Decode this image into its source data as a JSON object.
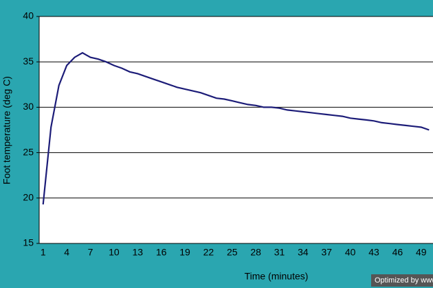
{
  "chart_data": {
    "type": "line",
    "x_label": "Time (minutes)",
    "y_label": "Foot temperature (deg C)",
    "categories": [
      1,
      null,
      null,
      4,
      null,
      null,
      7,
      null,
      null,
      10,
      null,
      null,
      13,
      null,
      null,
      16,
      null,
      null,
      19,
      null,
      null,
      22,
      null,
      null,
      25,
      null,
      null,
      28,
      null,
      null,
      31,
      null,
      null,
      34,
      null,
      null,
      37,
      null,
      null,
      40,
      null,
      null,
      43,
      null,
      null,
      46,
      null,
      null,
      49,
      null
    ],
    "series": [
      {
        "color": "#1c1c78",
        "values": [
          19.3,
          27.8,
          32.4,
          34.6,
          35.5,
          36.0,
          35.5,
          35.3,
          35.0,
          34.6,
          34.3,
          33.9,
          33.7,
          33.4,
          33.1,
          32.8,
          32.5,
          32.2,
          32.0,
          31.8,
          31.6,
          31.3,
          31.0,
          30.9,
          30.7,
          30.5,
          30.3,
          30.2,
          30.0,
          30.0,
          29.9,
          29.7,
          29.6,
          29.5,
          29.4,
          29.3,
          29.2,
          29.1,
          29.0,
          28.8,
          28.7,
          28.6,
          28.5,
          28.3,
          28.2,
          28.1,
          28.0,
          27.9,
          27.8,
          27.5
        ]
      }
    ],
    "ylim": [
      15,
      40
    ],
    "yticks": [
      15,
      20,
      25,
      30,
      35,
      40
    ],
    "grid": true
  },
  "watermark": "Optimized by www"
}
